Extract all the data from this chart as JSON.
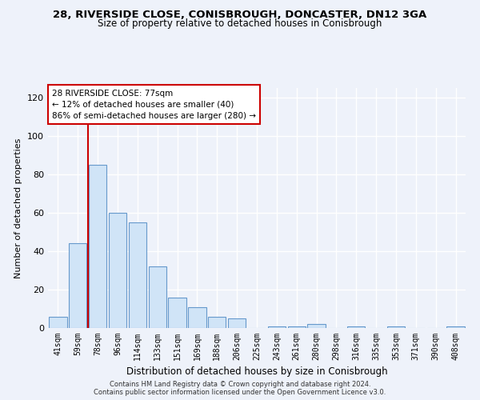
{
  "title_line1": "28, RIVERSIDE CLOSE, CONISBROUGH, DONCASTER, DN12 3GA",
  "title_line2": "Size of property relative to detached houses in Conisbrough",
  "xlabel": "Distribution of detached houses by size in Conisbrough",
  "ylabel": "Number of detached properties",
  "categories": [
    "41sqm",
    "59sqm",
    "78sqm",
    "96sqm",
    "114sqm",
    "133sqm",
    "151sqm",
    "169sqm",
    "188sqm",
    "206sqm",
    "225sqm",
    "243sqm",
    "261sqm",
    "280sqm",
    "298sqm",
    "316sqm",
    "335sqm",
    "353sqm",
    "371sqm",
    "390sqm",
    "408sqm"
  ],
  "values": [
    6,
    44,
    85,
    60,
    55,
    32,
    16,
    11,
    6,
    5,
    0,
    1,
    1,
    2,
    0,
    1,
    0,
    1,
    0,
    0,
    1
  ],
  "bar_color": "#d0e4f7",
  "bar_edge_color": "#6699cc",
  "ylim": [
    0,
    125
  ],
  "yticks": [
    0,
    20,
    40,
    60,
    80,
    100,
    120
  ],
  "vline_x_index": 2,
  "annotation_line1": "28 RIVERSIDE CLOSE: 77sqm",
  "annotation_line2": "← 12% of detached houses are smaller (40)",
  "annotation_line3": "86% of semi-detached houses are larger (280) →",
  "footer_line1": "Contains HM Land Registry data © Crown copyright and database right 2024.",
  "footer_line2": "Contains public sector information licensed under the Open Government Licence v3.0.",
  "background_color": "#eef2fa",
  "grid_color": "#ffffff",
  "vline_color": "#cc0000",
  "title1_fontsize": 9.5,
  "title2_fontsize": 8.5,
  "ylabel_fontsize": 8,
  "xlabel_fontsize": 8.5
}
